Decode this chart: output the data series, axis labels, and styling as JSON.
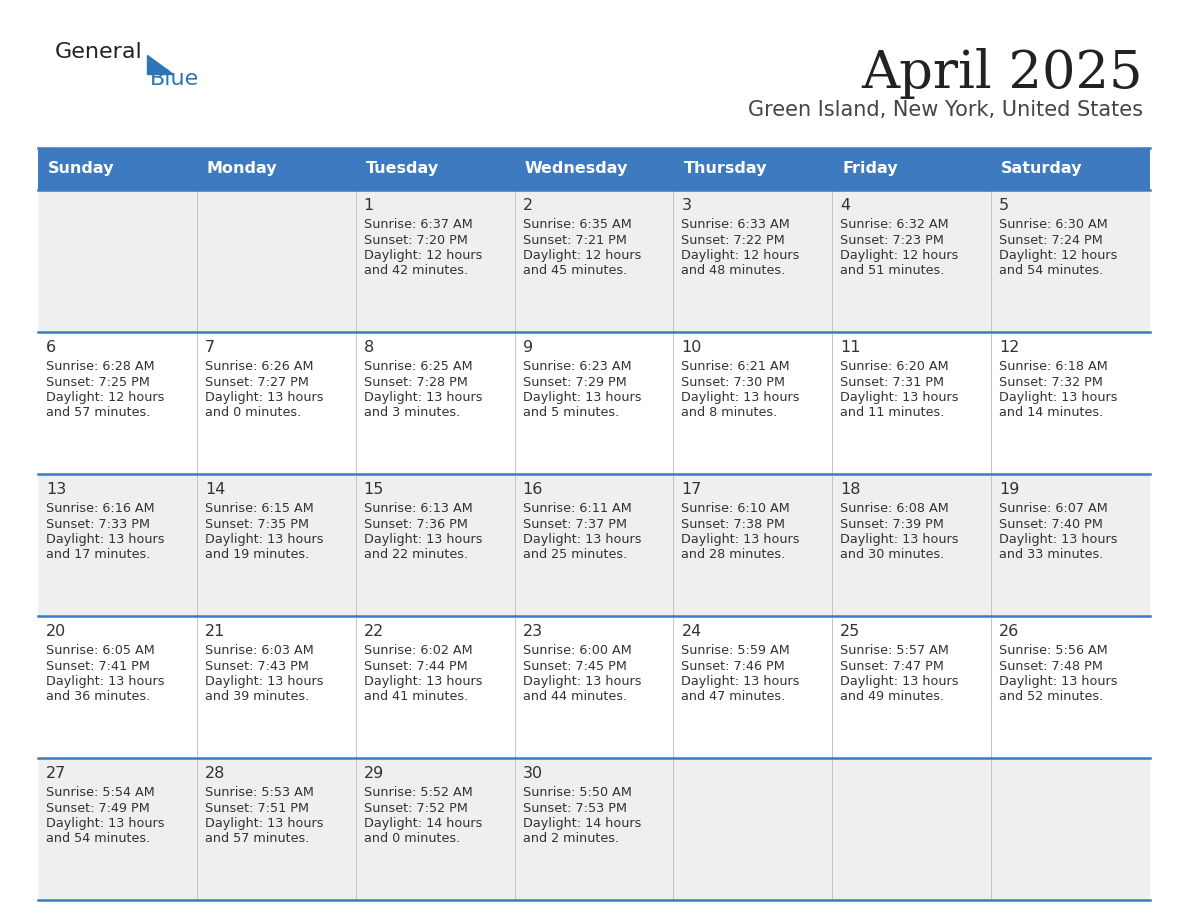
{
  "title": "April 2025",
  "subtitle": "Green Island, New York, United States",
  "header_bg": "#3D7ABF",
  "header_text_color": "#FFFFFF",
  "day_names": [
    "Sunday",
    "Monday",
    "Tuesday",
    "Wednesday",
    "Thursday",
    "Friday",
    "Saturday"
  ],
  "cell_bg": "#FFFFFF",
  "cell_bg_alt": "#F0F0F0",
  "cell_text_color": "#333333",
  "border_color": "#3D7ABF",
  "row_line_color": "#3D7ABF",
  "title_color": "#222222",
  "subtitle_color": "#444444",
  "logo_general_color": "#222222",
  "logo_blue_color": "#2E75B6",
  "weeks": [
    [
      {
        "day": "",
        "sunrise": "",
        "sunset": "",
        "daylight1": "",
        "daylight2": ""
      },
      {
        "day": "",
        "sunrise": "",
        "sunset": "",
        "daylight1": "",
        "daylight2": ""
      },
      {
        "day": "1",
        "sunrise": "Sunrise: 6:37 AM",
        "sunset": "Sunset: 7:20 PM",
        "daylight1": "Daylight: 12 hours",
        "daylight2": "and 42 minutes."
      },
      {
        "day": "2",
        "sunrise": "Sunrise: 6:35 AM",
        "sunset": "Sunset: 7:21 PM",
        "daylight1": "Daylight: 12 hours",
        "daylight2": "and 45 minutes."
      },
      {
        "day": "3",
        "sunrise": "Sunrise: 6:33 AM",
        "sunset": "Sunset: 7:22 PM",
        "daylight1": "Daylight: 12 hours",
        "daylight2": "and 48 minutes."
      },
      {
        "day": "4",
        "sunrise": "Sunrise: 6:32 AM",
        "sunset": "Sunset: 7:23 PM",
        "daylight1": "Daylight: 12 hours",
        "daylight2": "and 51 minutes."
      },
      {
        "day": "5",
        "sunrise": "Sunrise: 6:30 AM",
        "sunset": "Sunset: 7:24 PM",
        "daylight1": "Daylight: 12 hours",
        "daylight2": "and 54 minutes."
      }
    ],
    [
      {
        "day": "6",
        "sunrise": "Sunrise: 6:28 AM",
        "sunset": "Sunset: 7:25 PM",
        "daylight1": "Daylight: 12 hours",
        "daylight2": "and 57 minutes."
      },
      {
        "day": "7",
        "sunrise": "Sunrise: 6:26 AM",
        "sunset": "Sunset: 7:27 PM",
        "daylight1": "Daylight: 13 hours",
        "daylight2": "and 0 minutes."
      },
      {
        "day": "8",
        "sunrise": "Sunrise: 6:25 AM",
        "sunset": "Sunset: 7:28 PM",
        "daylight1": "Daylight: 13 hours",
        "daylight2": "and 3 minutes."
      },
      {
        "day": "9",
        "sunrise": "Sunrise: 6:23 AM",
        "sunset": "Sunset: 7:29 PM",
        "daylight1": "Daylight: 13 hours",
        "daylight2": "and 5 minutes."
      },
      {
        "day": "10",
        "sunrise": "Sunrise: 6:21 AM",
        "sunset": "Sunset: 7:30 PM",
        "daylight1": "Daylight: 13 hours",
        "daylight2": "and 8 minutes."
      },
      {
        "day": "11",
        "sunrise": "Sunrise: 6:20 AM",
        "sunset": "Sunset: 7:31 PM",
        "daylight1": "Daylight: 13 hours",
        "daylight2": "and 11 minutes."
      },
      {
        "day": "12",
        "sunrise": "Sunrise: 6:18 AM",
        "sunset": "Sunset: 7:32 PM",
        "daylight1": "Daylight: 13 hours",
        "daylight2": "and 14 minutes."
      }
    ],
    [
      {
        "day": "13",
        "sunrise": "Sunrise: 6:16 AM",
        "sunset": "Sunset: 7:33 PM",
        "daylight1": "Daylight: 13 hours",
        "daylight2": "and 17 minutes."
      },
      {
        "day": "14",
        "sunrise": "Sunrise: 6:15 AM",
        "sunset": "Sunset: 7:35 PM",
        "daylight1": "Daylight: 13 hours",
        "daylight2": "and 19 minutes."
      },
      {
        "day": "15",
        "sunrise": "Sunrise: 6:13 AM",
        "sunset": "Sunset: 7:36 PM",
        "daylight1": "Daylight: 13 hours",
        "daylight2": "and 22 minutes."
      },
      {
        "day": "16",
        "sunrise": "Sunrise: 6:11 AM",
        "sunset": "Sunset: 7:37 PM",
        "daylight1": "Daylight: 13 hours",
        "daylight2": "and 25 minutes."
      },
      {
        "day": "17",
        "sunrise": "Sunrise: 6:10 AM",
        "sunset": "Sunset: 7:38 PM",
        "daylight1": "Daylight: 13 hours",
        "daylight2": "and 28 minutes."
      },
      {
        "day": "18",
        "sunrise": "Sunrise: 6:08 AM",
        "sunset": "Sunset: 7:39 PM",
        "daylight1": "Daylight: 13 hours",
        "daylight2": "and 30 minutes."
      },
      {
        "day": "19",
        "sunrise": "Sunrise: 6:07 AM",
        "sunset": "Sunset: 7:40 PM",
        "daylight1": "Daylight: 13 hours",
        "daylight2": "and 33 minutes."
      }
    ],
    [
      {
        "day": "20",
        "sunrise": "Sunrise: 6:05 AM",
        "sunset": "Sunset: 7:41 PM",
        "daylight1": "Daylight: 13 hours",
        "daylight2": "and 36 minutes."
      },
      {
        "day": "21",
        "sunrise": "Sunrise: 6:03 AM",
        "sunset": "Sunset: 7:43 PM",
        "daylight1": "Daylight: 13 hours",
        "daylight2": "and 39 minutes."
      },
      {
        "day": "22",
        "sunrise": "Sunrise: 6:02 AM",
        "sunset": "Sunset: 7:44 PM",
        "daylight1": "Daylight: 13 hours",
        "daylight2": "and 41 minutes."
      },
      {
        "day": "23",
        "sunrise": "Sunrise: 6:00 AM",
        "sunset": "Sunset: 7:45 PM",
        "daylight1": "Daylight: 13 hours",
        "daylight2": "and 44 minutes."
      },
      {
        "day": "24",
        "sunrise": "Sunrise: 5:59 AM",
        "sunset": "Sunset: 7:46 PM",
        "daylight1": "Daylight: 13 hours",
        "daylight2": "and 47 minutes."
      },
      {
        "day": "25",
        "sunrise": "Sunrise: 5:57 AM",
        "sunset": "Sunset: 7:47 PM",
        "daylight1": "Daylight: 13 hours",
        "daylight2": "and 49 minutes."
      },
      {
        "day": "26",
        "sunrise": "Sunrise: 5:56 AM",
        "sunset": "Sunset: 7:48 PM",
        "daylight1": "Daylight: 13 hours",
        "daylight2": "and 52 minutes."
      }
    ],
    [
      {
        "day": "27",
        "sunrise": "Sunrise: 5:54 AM",
        "sunset": "Sunset: 7:49 PM",
        "daylight1": "Daylight: 13 hours",
        "daylight2": "and 54 minutes."
      },
      {
        "day": "28",
        "sunrise": "Sunrise: 5:53 AM",
        "sunset": "Sunset: 7:51 PM",
        "daylight1": "Daylight: 13 hours",
        "daylight2": "and 57 minutes."
      },
      {
        "day": "29",
        "sunrise": "Sunrise: 5:52 AM",
        "sunset": "Sunset: 7:52 PM",
        "daylight1": "Daylight: 14 hours",
        "daylight2": "and 0 minutes."
      },
      {
        "day": "30",
        "sunrise": "Sunrise: 5:50 AM",
        "sunset": "Sunset: 7:53 PM",
        "daylight1": "Daylight: 14 hours",
        "daylight2": "and 2 minutes."
      },
      {
        "day": "",
        "sunrise": "",
        "sunset": "",
        "daylight1": "",
        "daylight2": ""
      },
      {
        "day": "",
        "sunrise": "",
        "sunset": "",
        "daylight1": "",
        "daylight2": ""
      },
      {
        "day": "",
        "sunrise": "",
        "sunset": "",
        "daylight1": "",
        "daylight2": ""
      }
    ]
  ]
}
